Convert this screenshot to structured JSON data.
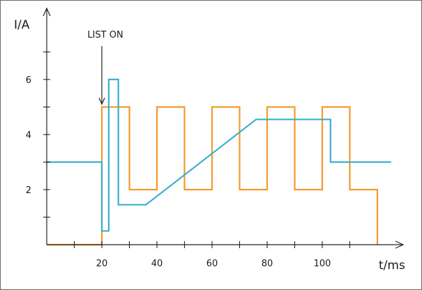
{
  "chart_data": {
    "type": "line",
    "xlabel": "t/ms",
    "ylabel": "I/A",
    "xlim": [
      -20,
      130
    ],
    "ylim": [
      -2,
      8.5
    ],
    "xticks": [
      20,
      40,
      60,
      80,
      100
    ],
    "xminor": [
      10,
      30,
      50,
      70,
      90,
      110
    ],
    "yticks": [
      2,
      4,
      6
    ],
    "yminor": [
      1,
      3,
      5,
      7
    ],
    "grid": false,
    "annotations": [
      {
        "text": "LIST ON",
        "x": 20,
        "y": 5
      }
    ],
    "series": [
      {
        "color": "#f39a2a",
        "x": [
          0,
          20,
          20,
          30,
          30,
          40,
          40,
          50,
          50,
          60,
          60,
          70,
          70,
          80,
          80,
          90,
          90,
          100,
          100,
          110,
          110,
          120,
          120
        ],
        "y": [
          0,
          0,
          5,
          5,
          2,
          2,
          5,
          5,
          2,
          2,
          5,
          5,
          2,
          2,
          5,
          5,
          2,
          2,
          5,
          5,
          2,
          2,
          0
        ]
      },
      {
        "color": "#3ab0d0",
        "x": [
          0,
          20,
          20,
          22.5,
          22.5,
          26,
          26,
          36,
          76,
          103,
          103,
          125
        ],
        "y": [
          3,
          3,
          0.5,
          0.5,
          6,
          6,
          1.45,
          1.45,
          4.55,
          4.55,
          3,
          3
        ]
      }
    ]
  }
}
